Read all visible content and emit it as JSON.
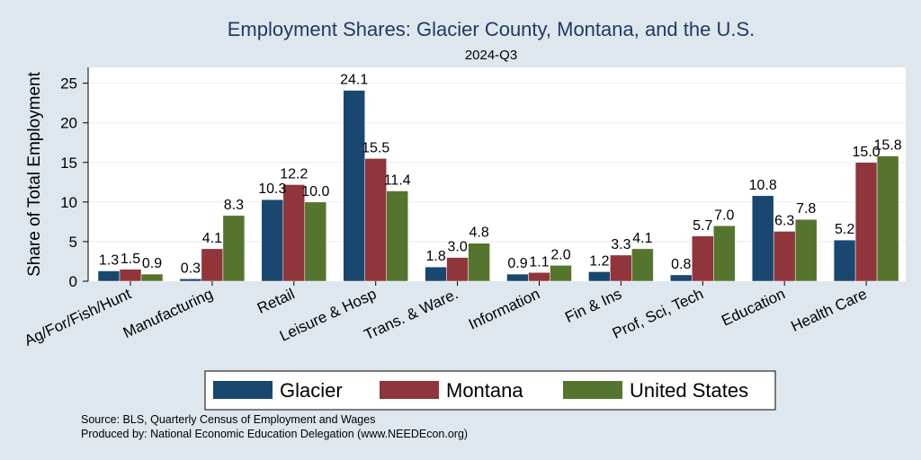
{
  "chart_data": {
    "type": "bar",
    "title": "Employment Shares: Glacier County, Montana, and the U.S.",
    "subtitle": "2024-Q3",
    "xlabel": "",
    "ylabel": "Share of Total Employment",
    "ylim": [
      0,
      27
    ],
    "yticks": [
      0,
      5,
      10,
      15,
      20,
      25
    ],
    "grid": true,
    "legend_position": "bottom",
    "categories": [
      "Ag/For/Fish/Hunt",
      "Manufacturing",
      "Retail",
      "Leisure & Hosp",
      "Trans. & Ware.",
      "Information",
      "Fin & Ins",
      "Prof, Sci, Tech",
      "Education",
      "Health Care"
    ],
    "series": [
      {
        "name": "Glacier",
        "color": "#1a476f",
        "values": [
          1.3,
          0.3,
          10.3,
          24.1,
          1.8,
          0.9,
          1.2,
          0.8,
          10.8,
          5.2
        ]
      },
      {
        "name": "Montana",
        "color": "#90353b",
        "values": [
          1.5,
          4.1,
          12.2,
          15.5,
          3.0,
          1.1,
          3.3,
          5.7,
          6.3,
          15.0
        ]
      },
      {
        "name": "United States",
        "color": "#55752f",
        "values": [
          0.9,
          8.3,
          10.0,
          11.4,
          4.8,
          2.0,
          4.1,
          7.0,
          7.8,
          15.8
        ]
      }
    ],
    "notes": [
      "Source: BLS, Quarterly Census of Employment and Wages",
      "Produced by: National Economic Education Delegation (www.NEEDEcon.org)"
    ]
  }
}
